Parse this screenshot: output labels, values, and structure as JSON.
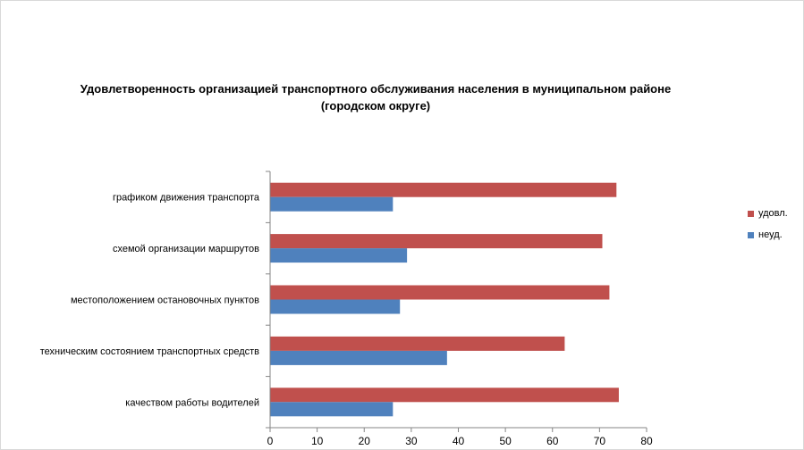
{
  "chart_data": {
    "type": "bar",
    "orientation": "horizontal",
    "title_line1": "Удовлетворенность организацией транспортного обслуживания населения в муниципальном районе",
    "title_line2": "(городском округе)",
    "categories": [
      "графиком  движения  транспорта",
      "схемой организации маршрутов",
      "местоположением  остановочных пунктов",
      "техническим  состоянием транспортных средств",
      "качеством  работы водителей"
    ],
    "series": [
      {
        "name": "удовл.",
        "color": "#c0504d",
        "values": [
          73.5,
          70.5,
          72,
          62.5,
          74
        ]
      },
      {
        "name": "неуд.",
        "color": "#4f81bd",
        "values": [
          26,
          29,
          27.5,
          37.5,
          26
        ]
      }
    ],
    "xlim": [
      0,
      80
    ],
    "xticks": [
      "0",
      "10",
      "20",
      "30",
      "40",
      "50",
      "60",
      "70",
      "80"
    ],
    "grid": false,
    "legend_position": "right"
  }
}
